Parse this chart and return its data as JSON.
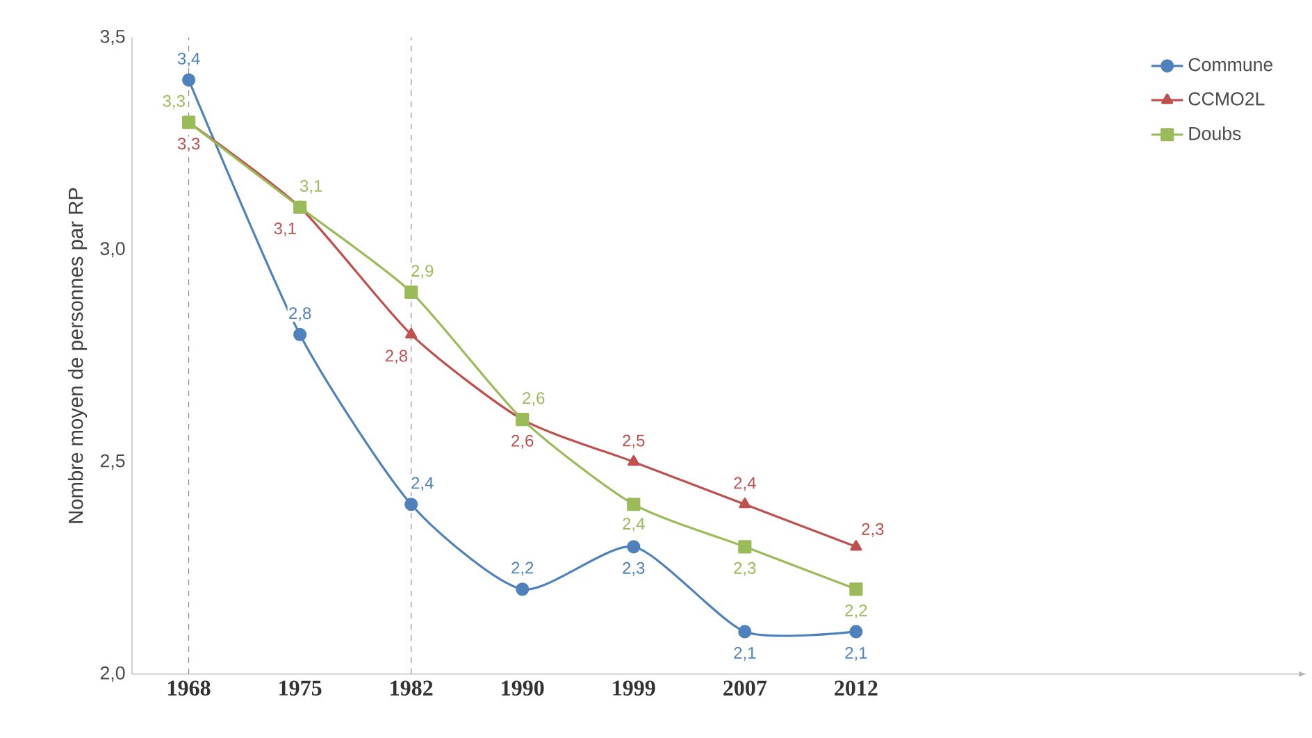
{
  "chart_data": {
    "type": "line",
    "ylabel": "Nombre moyen de personnes par RP",
    "categories": [
      "1968",
      "1975",
      "1982",
      "1990",
      "1999",
      "2007",
      "2012"
    ],
    "series": [
      {
        "name": "Commune",
        "color": "#4f81bd",
        "marker": "circle",
        "values": [
          3.4,
          2.8,
          2.4,
          2.2,
          2.3,
          2.1,
          2.1
        ],
        "value_labels": [
          "3,4",
          "2,8",
          "2,4",
          "2,2",
          "2,3",
          "2,1",
          "2,1"
        ]
      },
      {
        "name": "CCMO2L",
        "color": "#c0504d",
        "marker": "triangle",
        "values": [
          3.3,
          3.1,
          2.8,
          2.6,
          2.5,
          2.4,
          2.3
        ],
        "value_labels": [
          "3,3",
          "3,1",
          "2,8",
          "2,6",
          "2,5",
          "2,4",
          "2,3"
        ]
      },
      {
        "name": "Doubs",
        "color": "#9bbb59",
        "marker": "square",
        "values": [
          3.3,
          3.1,
          2.9,
          2.6,
          2.4,
          2.3,
          2.2
        ],
        "value_labels": [
          "3,3",
          "3,1",
          "2,9",
          "2,6",
          "2,4",
          "2,3",
          "2,2"
        ]
      }
    ],
    "ylim": [
      2.0,
      3.5
    ],
    "yticks": [
      {
        "value": 2.0,
        "label": "2,0"
      },
      {
        "value": 2.5,
        "label": "2,5"
      },
      {
        "value": 3.0,
        "label": "3,0"
      },
      {
        "value": 3.5,
        "label": "3,5"
      }
    ],
    "ref_lines": [
      {
        "axis": "x",
        "value": "1968",
        "line_style": "dashed",
        "color": "#808080"
      },
      {
        "axis": "x",
        "value": "1982",
        "line_style": "dashed",
        "color": "#808080"
      }
    ],
    "legend": "top right",
    "grid": false
  }
}
